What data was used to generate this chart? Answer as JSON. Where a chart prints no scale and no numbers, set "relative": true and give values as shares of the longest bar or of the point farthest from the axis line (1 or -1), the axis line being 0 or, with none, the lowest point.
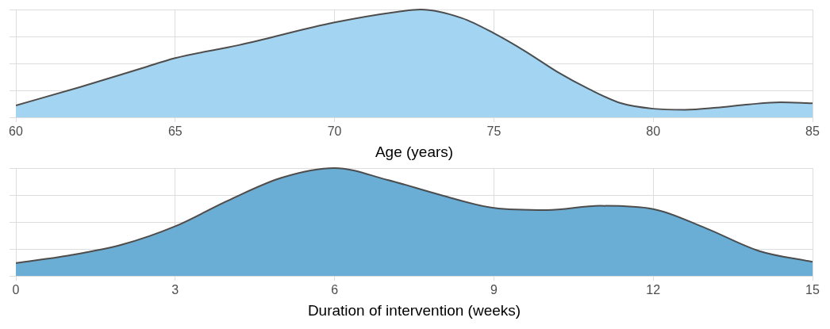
{
  "chart_data": [
    {
      "type": "area",
      "relative": true,
      "xlabel": "Age (years)",
      "xlim": [
        60,
        85
      ],
      "xticks": [
        60,
        65,
        70,
        75,
        80,
        85
      ],
      "grid": true,
      "tick_labels": "x",
      "color": "#a3d5f3",
      "x": [
        60,
        62,
        64,
        65,
        67,
        70,
        72,
        72.7,
        74,
        75,
        76,
        77,
        78,
        79,
        80,
        81,
        82,
        83,
        84,
        85
      ],
      "values": [
        0.11,
        0.28,
        0.46,
        0.55,
        0.67,
        0.88,
        0.98,
        1.0,
        0.92,
        0.78,
        0.61,
        0.42,
        0.26,
        0.13,
        0.08,
        0.07,
        0.09,
        0.12,
        0.14,
        0.13
      ]
    },
    {
      "type": "area",
      "relative": true,
      "xlabel": "Duration of intervention (weeks)",
      "xlim": [
        0,
        15
      ],
      "xticks": [
        0,
        3,
        6,
        9,
        12,
        15
      ],
      "grid": true,
      "tick_labels": "x",
      "color": "#6aaed6",
      "x": [
        0,
        1,
        2,
        3,
        4,
        5,
        6,
        7,
        8,
        9,
        10,
        11,
        12,
        13,
        14,
        15
      ],
      "values": [
        0.12,
        0.19,
        0.29,
        0.46,
        0.7,
        0.91,
        1.0,
        0.89,
        0.75,
        0.63,
        0.61,
        0.65,
        0.62,
        0.44,
        0.23,
        0.13
      ]
    }
  ]
}
